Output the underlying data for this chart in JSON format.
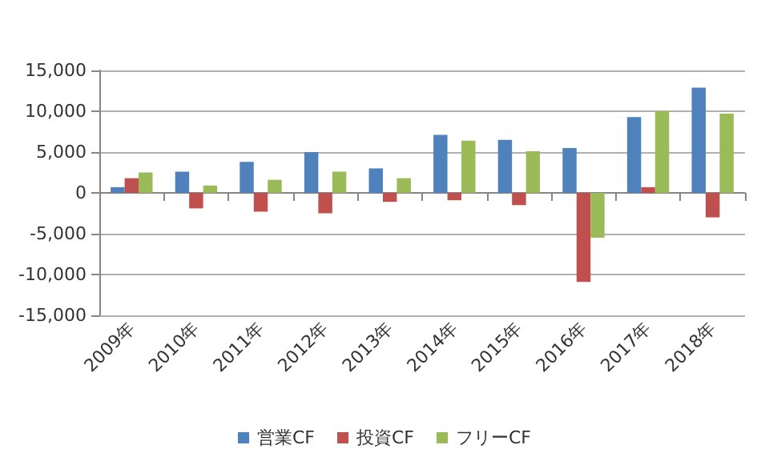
{
  "chart_data": {
    "type": "bar",
    "categories": [
      "2009年",
      "2010年",
      "2011年",
      "2012年",
      "2013年",
      "2014年",
      "2015年",
      "2016年",
      "2017年",
      "2018年"
    ],
    "series": [
      {
        "name": "営業CF",
        "color": "#4f81bd",
        "values": [
          700,
          2600,
          3800,
          5000,
          3000,
          7100,
          6500,
          5500,
          9300,
          12900
        ]
      },
      {
        "name": "投資CF",
        "color": "#c0504d",
        "values": [
          1800,
          -1900,
          -2300,
          -2500,
          -1100,
          -900,
          -1500,
          -10900,
          700,
          -3000
        ]
      },
      {
        "name": "フリーCF",
        "color": "#9bbb59",
        "values": [
          2500,
          900,
          1600,
          2600,
          1800,
          6400,
          5100,
          -5500,
          10000,
          9700
        ]
      }
    ],
    "ylim": [
      -15000,
      15000
    ],
    "yticks": [
      {
        "value": -15000,
        "label": "-15,000"
      },
      {
        "value": -10000,
        "label": "-10,000"
      },
      {
        "value": -5000,
        "label": "-5,000"
      },
      0,
      {
        "value": 5000,
        "label": "5,000"
      },
      {
        "value": 10000,
        "label": "10,000"
      },
      {
        "value": 15000,
        "label": "15,000"
      }
    ],
    "grid": "y",
    "legend": "bottom"
  }
}
